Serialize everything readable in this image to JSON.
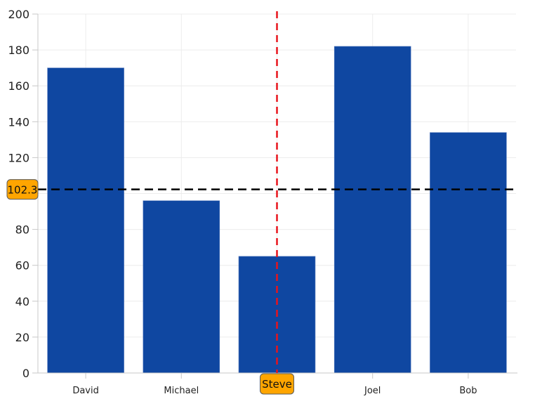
{
  "chart_data": {
    "type": "bar",
    "title": "",
    "xlabel": "",
    "ylabel": "",
    "categories": [
      "David",
      "Michael",
      "Steve",
      "Joel",
      "Bob"
    ],
    "values": [
      170,
      96,
      65,
      182,
      134
    ],
    "ylim": [
      0,
      200
    ],
    "yticks": [
      0,
      20,
      40,
      60,
      80,
      100,
      120,
      140,
      160,
      180,
      200
    ],
    "ytick_labels_visible": [
      "0",
      "20",
      "40",
      "60",
      "80",
      "120",
      "140",
      "160",
      "180",
      "200"
    ],
    "grid": true,
    "bar_color": "#0F47A1",
    "annotations": {
      "horizontal_line": {
        "value": 102.3,
        "label": "102.3",
        "color": "#000000",
        "style": "dashed"
      },
      "vertical_line": {
        "category": "Steve",
        "label": "Steve",
        "color": "#E8141C",
        "style": "dashed"
      },
      "badge_color": "#FFA500"
    }
  }
}
